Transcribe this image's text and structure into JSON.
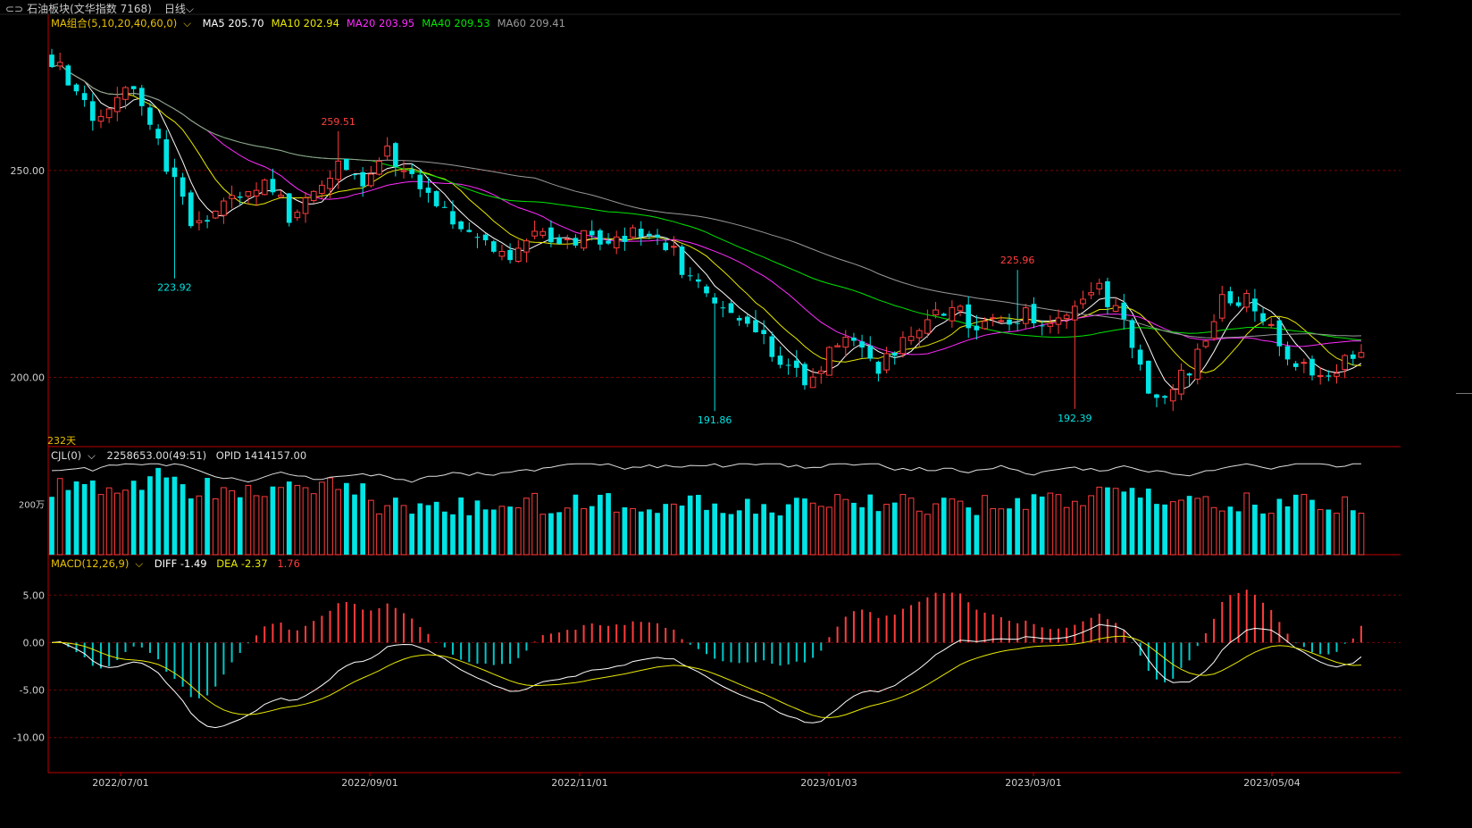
{
  "window": {
    "title": "石油板块(文华指数 7168)",
    "period": "日线",
    "period_arrow": "⌵"
  },
  "panels": {
    "main": {
      "indicator_label": "MA组合(5,10,20,40,60,0)",
      "ma_values": [
        {
          "label": "MA5 205.70",
          "color": "#ffffff"
        },
        {
          "label": "MA10 202.94",
          "color": "#e8e800"
        },
        {
          "label": "MA20 203.95",
          "color": "#ff2bff"
        },
        {
          "label": "MA40 209.53",
          "color": "#00e600"
        },
        {
          "label": "MA60 209.41",
          "color": "#9a9a9a"
        }
      ],
      "bar_count_label": "232天",
      "y_ticks": [
        "250.00",
        "200.00"
      ],
      "annotations": [
        {
          "text": "259.51",
          "color": "#ff4040"
        },
        {
          "text": "223.92",
          "color": "#00e5e5"
        },
        {
          "text": "191.86",
          "color": "#00e5e5"
        },
        {
          "text": "225.96",
          "color": "#ff4040"
        },
        {
          "text": "192.39",
          "color": "#00e5e5"
        }
      ]
    },
    "volume": {
      "indicator_label": "CJL(0)",
      "values_text": "2258653.00(49:51)",
      "opid_text": "OPID 1414157.00",
      "y_tick": "200万"
    },
    "macd": {
      "indicator_label": "MACD(12,26,9)",
      "diff_text": "DIFF -1.49",
      "dea_text": "DEA -2.37",
      "macd_text": "1.76",
      "y_ticks": [
        "5.00",
        "0.00",
        "-5.00",
        "-10.00"
      ]
    }
  },
  "x_axis": {
    "dates": [
      "2022/07/01",
      "2022/09/01",
      "2022/11/01",
      "2023/01/03",
      "2023/03/01",
      "2023/05/04"
    ]
  },
  "colors": {
    "up": "#ff3c3c",
    "down": "#00e5e5",
    "axis": "#c00000",
    "grid": "#6a0000"
  },
  "chart_data": {
    "type": "candlestick",
    "title": "石油板块(文华指数 7168)",
    "ylim": [
      185,
      283
    ],
    "extremes": [
      {
        "label": "259.51",
        "value": 259.51
      },
      {
        "label": "223.92",
        "value": 223.92
      },
      {
        "label": "191.86",
        "value": 191.86
      },
      {
        "label": "225.96",
        "value": 225.96
      },
      {
        "label": "192.39",
        "value": 192.39
      }
    ],
    "close_anchors": [
      [
        0,
        277
      ],
      [
        2,
        272
      ],
      [
        5,
        262
      ],
      [
        8,
        269
      ],
      [
        11,
        267
      ],
      [
        14,
        251
      ],
      [
        17,
        238
      ],
      [
        20,
        240
      ],
      [
        23,
        244
      ],
      [
        26,
        249
      ],
      [
        29,
        239
      ],
      [
        32,
        246
      ],
      [
        35,
        251
      ],
      [
        38,
        245
      ],
      [
        41,
        254
      ],
      [
        44,
        251
      ],
      [
        47,
        241
      ],
      [
        50,
        237
      ],
      [
        53,
        233
      ],
      [
        56,
        229
      ],
      [
        59,
        237
      ],
      [
        62,
        231
      ],
      [
        65,
        234
      ],
      [
        68,
        232
      ],
      [
        71,
        236
      ],
      [
        74,
        235
      ],
      [
        77,
        227
      ],
      [
        80,
        219
      ],
      [
        83,
        214
      ],
      [
        86,
        212
      ],
      [
        89,
        204
      ],
      [
        92,
        200
      ],
      [
        95,
        205
      ],
      [
        98,
        209
      ],
      [
        101,
        203
      ],
      [
        104,
        208
      ],
      [
        107,
        212
      ],
      [
        110,
        219
      ],
      [
        113,
        210
      ],
      [
        116,
        215
      ],
      [
        119,
        215
      ],
      [
        122,
        213
      ],
      [
        125,
        215
      ],
      [
        128,
        222
      ],
      [
        131,
        212
      ],
      [
        134,
        196
      ],
      [
        137,
        197
      ],
      [
        140,
        205
      ],
      [
        143,
        218
      ],
      [
        146,
        220
      ],
      [
        149,
        212
      ],
      [
        152,
        203
      ],
      [
        155,
        200
      ],
      [
        160,
        206
      ]
    ],
    "ma_series": [
      {
        "name": "MA5",
        "last": 205.7
      },
      {
        "name": "MA10",
        "last": 202.94
      },
      {
        "name": "MA20",
        "last": 203.95
      },
      {
        "name": "MA40",
        "last": 209.53
      },
      {
        "name": "MA60",
        "last": 209.41
      }
    ],
    "volume": {
      "ylim": [
        0,
        400
      ]
    },
    "macd": {
      "ylim": [
        -12,
        7
      ],
      "diff": -1.49,
      "dea": -2.37,
      "macd": 1.76
    }
  }
}
